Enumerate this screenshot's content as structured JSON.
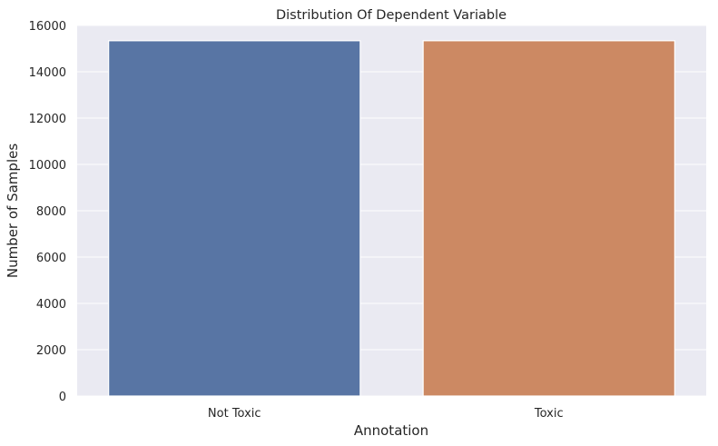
{
  "chart_data": {
    "type": "bar",
    "title": "Distribution Of Dependent Variable",
    "xlabel": "Annotation",
    "ylabel": "Number of Samples",
    "categories": [
      "Not Toxic",
      "Toxic"
    ],
    "values": [
      15340,
      15340
    ],
    "colors": [
      "#5875a4",
      "#cc8963"
    ],
    "ylim": [
      0,
      16000
    ],
    "yticks": [
      0,
      2000,
      4000,
      6000,
      8000,
      10000,
      12000,
      14000,
      16000
    ],
    "grid": true,
    "background": "#eaeaf2",
    "grid_color": "#ffffff"
  }
}
